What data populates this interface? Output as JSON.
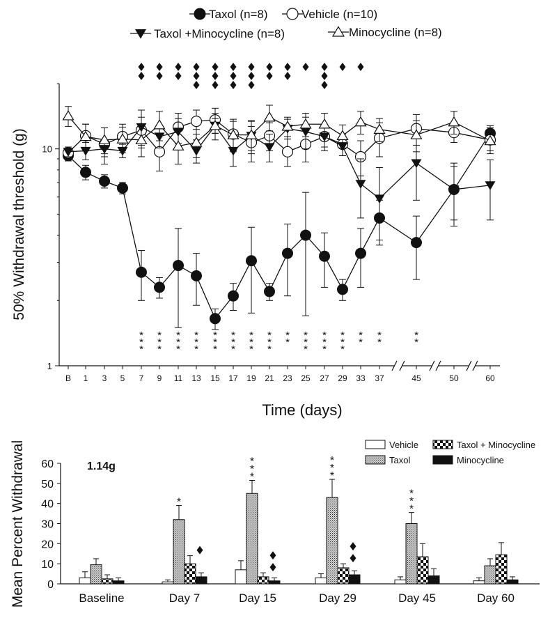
{
  "chart_data": [
    {
      "type": "line",
      "yscale": "log",
      "xlabel": "Time (days)",
      "ylabel": "50% Withdrawal threshold (g)",
      "ylim": [
        1,
        20
      ],
      "y_ticks": [
        "1",
        "10"
      ],
      "categories": [
        "B",
        "1",
        "3",
        "5",
        "7",
        "9",
        "11",
        "13",
        "15",
        "17",
        "19",
        "21",
        "23",
        "25",
        "27",
        "29",
        "33",
        "37",
        "45",
        "50",
        "60"
      ],
      "legend": [
        {
          "name": "Taxol (n=8)",
          "marker": "filled-circle"
        },
        {
          "name": "Vehicle (n=10)",
          "marker": "open-circle"
        },
        {
          "name": "Taxol +Minocycline (n=8)",
          "marker": "filled-triangle-down"
        },
        {
          "name": "Minocycline (n=8)",
          "marker": "open-triangle-up"
        }
      ],
      "series": [
        {
          "name": "Taxol (n=8)",
          "marker": "filled-circle",
          "values": [
            9.3,
            7.8,
            7.1,
            6.6,
            2.7,
            2.3,
            2.9,
            2.6,
            1.65,
            2.1,
            3.05,
            2.2,
            3.3,
            4.0,
            3.2,
            2.25,
            3.3,
            4.8,
            3.7,
            6.5,
            11.8
          ],
          "errors": [
            0.5,
            0.6,
            0.5,
            0.4,
            0.7,
            0.25,
            1.4,
            0.7,
            0.18,
            0.3,
            1.3,
            0.2,
            1.2,
            2.3,
            0.9,
            0.25,
            1.0,
            1.0,
            1.2,
            2.1,
            1.0
          ]
        },
        {
          "name": "Vehicle (n=10)",
          "marker": "open-circle",
          "values": [
            9.6,
            11.5,
            10.5,
            11.4,
            12.2,
            9.7,
            12.6,
            13.4,
            13.6,
            11.7,
            10.7,
            11.5,
            9.7,
            10.5,
            11.4,
            10.5,
            9.2,
            11.2,
            12.4,
            11.9,
            11.0
          ],
          "errors": [
            0.6,
            1.5,
            2.0,
            1.6,
            1.8,
            1.8,
            2.0,
            1.7,
            1.8,
            2.0,
            2.0,
            1.7,
            1.4,
            1.8,
            1.6,
            1.2,
            1.7,
            2.0,
            2.0,
            1.2,
            1.5
          ]
        },
        {
          "name": "Taxol +Minocycline (n=8)",
          "marker": "filled-triangle-down",
          "values": [
            9.7,
            9.8,
            10.0,
            9.8,
            12.6,
            11.4,
            12.0,
            9.8,
            12.8,
            9.8,
            11.5,
            10.2,
            12.4,
            12.0,
            11.4,
            10.3,
            6.9,
            5.9,
            8.6,
            6.5,
            6.8
          ],
          "errors": [
            0.5,
            0.9,
            0.8,
            0.7,
            2.5,
            1.3,
            1.8,
            1.2,
            1.0,
            1.5,
            2.0,
            1.5,
            1.3,
            2.0,
            1.2,
            1.0,
            2.1,
            2.3,
            2.8,
            1.8,
            2.1
          ]
        },
        {
          "name": "Minocycline (n=8)",
          "marker": "open-triangle-up",
          "values": [
            14.2,
            11.4,
            11.0,
            11.1,
            11.0,
            12.9,
            10.3,
            10.7,
            12.8,
            11.6,
            11.6,
            14.0,
            12.7,
            13.0,
            13.0,
            11.5,
            13.3,
            12.3,
            11.6,
            13.3,
            10.9
          ],
          "errors": [
            1.5,
            1.6,
            1.5,
            1.5,
            1.8,
            2.0,
            1.8,
            1.6,
            1.8,
            1.8,
            1.8,
            1.9,
            1.3,
            1.6,
            1.6,
            1.4,
            1.6,
            1.5,
            1.9,
            1.6,
            1.1
          ]
        }
      ],
      "diamond_counts": [
        0,
        0,
        0,
        0,
        2,
        2,
        2,
        3,
        3,
        3,
        3,
        2,
        2,
        1,
        3,
        1,
        1,
        0,
        0,
        0,
        0
      ],
      "asterisk_marks": [
        "",
        "",
        "",
        "",
        "***",
        "***",
        "***",
        "***",
        "***",
        "***",
        "***",
        "***",
        "**",
        "***",
        "***",
        "***",
        "**",
        "**",
        "**",
        "",
        ""
      ],
      "axis_breaks": [
        "37-45",
        "45-50",
        "50-60"
      ]
    },
    {
      "type": "bar",
      "ylabel": "Mean Percent Withdrawal",
      "ylim": [
        0,
        60
      ],
      "y_ticks": [
        0,
        10,
        20,
        30,
        40,
        50,
        60
      ],
      "annotation": "1.14g",
      "categories": [
        "Baseline",
        "Day 7",
        "Day 15",
        "Day 29",
        "Day 45",
        "Day 60"
      ],
      "legend": [
        {
          "name": "Vehicle",
          "fill": "white"
        },
        {
          "name": "Taxol",
          "fill": "stipple"
        },
        {
          "name": "Taxol + Minocycline",
          "fill": "checker"
        },
        {
          "name": "Minocycline",
          "fill": "black"
        }
      ],
      "series": [
        {
          "name": "Vehicle",
          "fill": "white",
          "values": [
            3,
            1,
            7,
            3,
            2,
            1.5
          ],
          "errors": [
            3,
            1,
            4.5,
            2,
            1.5,
            1.5
          ]
        },
        {
          "name": "Taxol",
          "fill": "stipple",
          "values": [
            9.5,
            32,
            45,
            43,
            30,
            9
          ],
          "errors": [
            3,
            7,
            6.5,
            9,
            5.5,
            3.5
          ]
        },
        {
          "name": "Taxol + Minocycline",
          "fill": "checker",
          "values": [
            2.5,
            10,
            3.5,
            8,
            13.5,
            14.5
          ],
          "errors": [
            2,
            4,
            2,
            2,
            6.5,
            6
          ]
        },
        {
          "name": "Minocycline",
          "fill": "black",
          "values": [
            1.5,
            3.5,
            1.5,
            4.5,
            4,
            2
          ],
          "errors": [
            1.5,
            2,
            1.5,
            2,
            3.5,
            1.5
          ]
        }
      ],
      "asterisk_marks": [
        "",
        "*",
        "***",
        "***",
        "***",
        ""
      ],
      "diamond_counts": [
        0,
        1,
        2,
        2,
        0,
        0
      ]
    }
  ]
}
